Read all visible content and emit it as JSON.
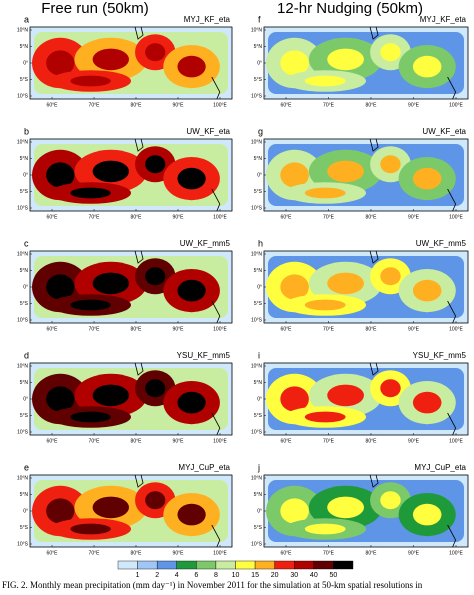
{
  "columns": [
    "Free run (50km)",
    "12-hr Nudging (50km)"
  ],
  "panels": [
    [
      {
        "letter": "a",
        "label": "MYJ_KF_eta"
      },
      {
        "letter": "b",
        "label": "UW_KF_eta"
      },
      {
        "letter": "c",
        "label": "UW_KF_mm5"
      },
      {
        "letter": "d",
        "label": "YSU_KF_mm5"
      },
      {
        "letter": "e",
        "label": "MYJ_CuP_eta"
      }
    ],
    [
      {
        "letter": "f",
        "label": "MYJ_KF_eta"
      },
      {
        "letter": "g",
        "label": "UW_KF_eta"
      },
      {
        "letter": "h",
        "label": "UW_KF_mm5"
      },
      {
        "letter": "i",
        "label": "YSU_KF_mm5"
      },
      {
        "letter": "j",
        "label": "MYJ_CuP_eta"
      }
    ]
  ],
  "lat_labels": [
    "10°N",
    "5°N",
    "0°",
    "5°S",
    "10°S"
  ],
  "lon_labels": [
    "60°E",
    "70°E",
    "80°E",
    "90°E",
    "100°E"
  ],
  "colorbar": {
    "levels": [
      1,
      2,
      4,
      6,
      8,
      10,
      15,
      20,
      30,
      40,
      50
    ],
    "colors": [
      "#cfe8fb",
      "#9fc6f4",
      "#5f95e6",
      "#1f9a3a",
      "#7cc96a",
      "#c9eda0",
      "#ffff40",
      "#ffb020",
      "#f02010",
      "#b00000",
      "#600000",
      "#000000"
    ]
  },
  "caption": "FIG. 2. Monthly mean precipitation (mm day⁻¹) in November 2011 for the simulation at 50-km spatial resolutions in"
}
